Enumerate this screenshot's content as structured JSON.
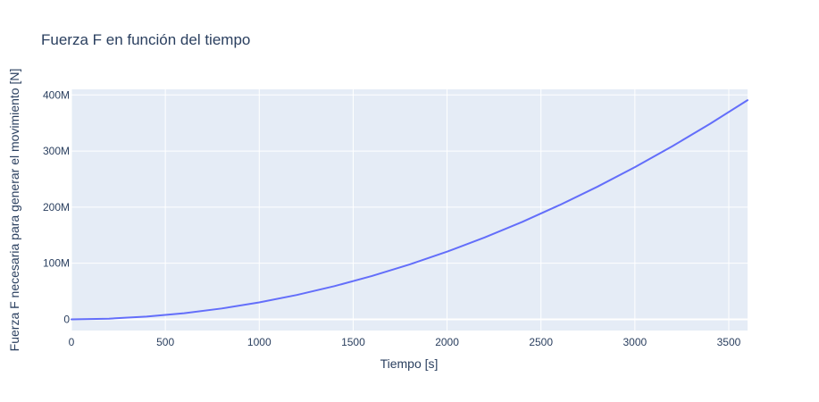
{
  "chart_data": {
    "type": "line",
    "title": "Fuerza F en función del tiempo",
    "xlabel": "Tiempo [s]",
    "ylabel": "Fuerza F necesaria para generar el movimiento [N]",
    "xlim": [
      0,
      3600
    ],
    "ylim": [
      -20000000,
      410000000
    ],
    "grid": true,
    "x_ticks": [
      {
        "value": 0,
        "label": "0"
      },
      {
        "value": 500,
        "label": "500"
      },
      {
        "value": 1000,
        "label": "1000"
      },
      {
        "value": 1500,
        "label": "1500"
      },
      {
        "value": 2000,
        "label": "2000"
      },
      {
        "value": 2500,
        "label": "2500"
      },
      {
        "value": 3000,
        "label": "3000"
      },
      {
        "value": 3500,
        "label": "3500"
      }
    ],
    "y_ticks": [
      {
        "value": 0,
        "label": "0"
      },
      {
        "value": 100000000,
        "label": "100M"
      },
      {
        "value": 200000000,
        "label": "200M"
      },
      {
        "value": 300000000,
        "label": "300M"
      },
      {
        "value": 400000000,
        "label": "400M"
      }
    ],
    "series": [
      {
        "color": "#636efa",
        "x": [
          0,
          200,
          400,
          600,
          800,
          1000,
          1200,
          1400,
          1600,
          1800,
          2000,
          2200,
          2400,
          2600,
          2800,
          3000,
          3200,
          3400,
          3600
        ],
        "y": [
          0,
          1200000,
          4800000,
          10800000,
          19300000,
          30100000,
          43400000,
          59100000,
          77200000,
          97700000,
          120600000,
          145900000,
          173600000,
          203800000,
          236300000,
          271300000,
          308700000,
          348500000,
          390700000
        ]
      }
    ]
  },
  "colors": {
    "plot_bg": "#e5ecf6",
    "grid": "#ffffff",
    "text": "#2a3f5f",
    "line": "#636efa"
  }
}
